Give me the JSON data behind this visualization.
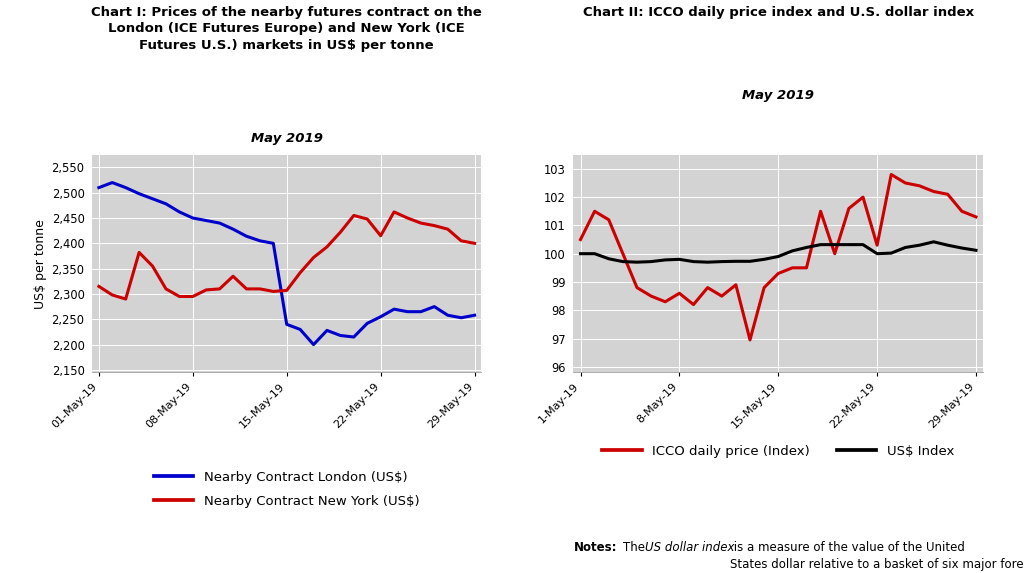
{
  "chart1": {
    "title_main": "Chart I: Prices of the nearby futures contract on the\nLondon (ICE Futures Europe) and New York (ICE\nFutures U.S.) markets in US$ per tonne",
    "title_italic": "May 2019",
    "ylabel": "US$ per tonne",
    "xlabels": [
      "01-May-19",
      "08-May-19",
      "15-May-19",
      "22-May-19",
      "29-May-19"
    ],
    "xtick_positions": [
      0,
      7,
      14,
      21,
      28
    ],
    "ylim": [
      2145,
      2575
    ],
    "yticks": [
      2150,
      2200,
      2250,
      2300,
      2350,
      2400,
      2450,
      2500,
      2550
    ],
    "london_x": [
      0,
      1,
      2,
      3,
      4,
      5,
      6,
      7,
      8,
      9,
      10,
      11,
      12,
      13,
      14,
      15,
      16,
      17,
      18,
      19,
      20,
      21,
      22,
      23,
      24,
      25,
      26,
      27,
      28
    ],
    "london_y": [
      2510,
      2520,
      2510,
      2498,
      2488,
      2478,
      2462,
      2450,
      2445,
      2440,
      2428,
      2414,
      2405,
      2400,
      2240,
      2230,
      2200,
      2228,
      2218,
      2215,
      2242,
      2255,
      2270,
      2265,
      2265,
      2275,
      2258,
      2253,
      2258
    ],
    "newyork_x": [
      0,
      1,
      2,
      3,
      4,
      5,
      6,
      7,
      8,
      9,
      10,
      11,
      12,
      13,
      14,
      15,
      16,
      17,
      18,
      19,
      20,
      21,
      22,
      23,
      24,
      25,
      26,
      27,
      28
    ],
    "newyork_y": [
      2315,
      2298,
      2290,
      2382,
      2355,
      2310,
      2295,
      2295,
      2308,
      2310,
      2335,
      2310,
      2310,
      2305,
      2307,
      2342,
      2372,
      2393,
      2422,
      2455,
      2448,
      2415,
      2462,
      2450,
      2440,
      2435,
      2428,
      2405,
      2400
    ],
    "london_color": "#0000CC",
    "newyork_color": "#CC0000",
    "legend_london": "Nearby Contract London (US$)",
    "legend_newyork": "Nearby Contract New York (US$)",
    "bg_color": "#D3D3D3"
  },
  "chart2": {
    "title_main": "Chart II: ICCO daily price index and U.S. dollar index",
    "title_italic": "May 2019",
    "xlabels": [
      "1-May-19",
      "8-May-19",
      "15-May-19",
      "22-May-19",
      "29-May-19"
    ],
    "xtick_positions": [
      0,
      7,
      14,
      21,
      28
    ],
    "ylim": [
      95.8,
      103.5
    ],
    "yticks": [
      96,
      97,
      98,
      99,
      100,
      101,
      102,
      103
    ],
    "icco_x": [
      0,
      1,
      2,
      3,
      4,
      5,
      6,
      7,
      8,
      9,
      10,
      11,
      12,
      13,
      14,
      15,
      16,
      17,
      18,
      19,
      20,
      21,
      22,
      23,
      24,
      25,
      26,
      27,
      28
    ],
    "icco_y": [
      100.5,
      101.5,
      101.2,
      100.0,
      98.8,
      98.5,
      98.3,
      98.6,
      98.2,
      98.8,
      98.5,
      98.9,
      96.95,
      98.8,
      99.3,
      99.5,
      99.5,
      101.5,
      100.0,
      101.6,
      102.0,
      100.3,
      102.8,
      102.5,
      102.4,
      102.2,
      102.1,
      101.5,
      101.3
    ],
    "usd_x": [
      0,
      1,
      2,
      3,
      4,
      5,
      6,
      7,
      8,
      9,
      10,
      11,
      12,
      13,
      14,
      15,
      16,
      17,
      18,
      19,
      20,
      21,
      22,
      23,
      24,
      25,
      26,
      27,
      28
    ],
    "usd_y": [
      100.0,
      100.0,
      99.82,
      99.72,
      99.7,
      99.72,
      99.78,
      99.8,
      99.72,
      99.7,
      99.72,
      99.73,
      99.73,
      99.8,
      99.9,
      100.1,
      100.22,
      100.32,
      100.32,
      100.32,
      100.32,
      100.0,
      100.02,
      100.22,
      100.3,
      100.42,
      100.3,
      100.2,
      100.12
    ],
    "icco_color": "#CC0000",
    "usd_color": "#000000",
    "legend_icco": "ICCO daily price (Index)",
    "legend_usd": "US$ Index",
    "bg_color": "#D3D3D3"
  },
  "linewidth": 2.2
}
